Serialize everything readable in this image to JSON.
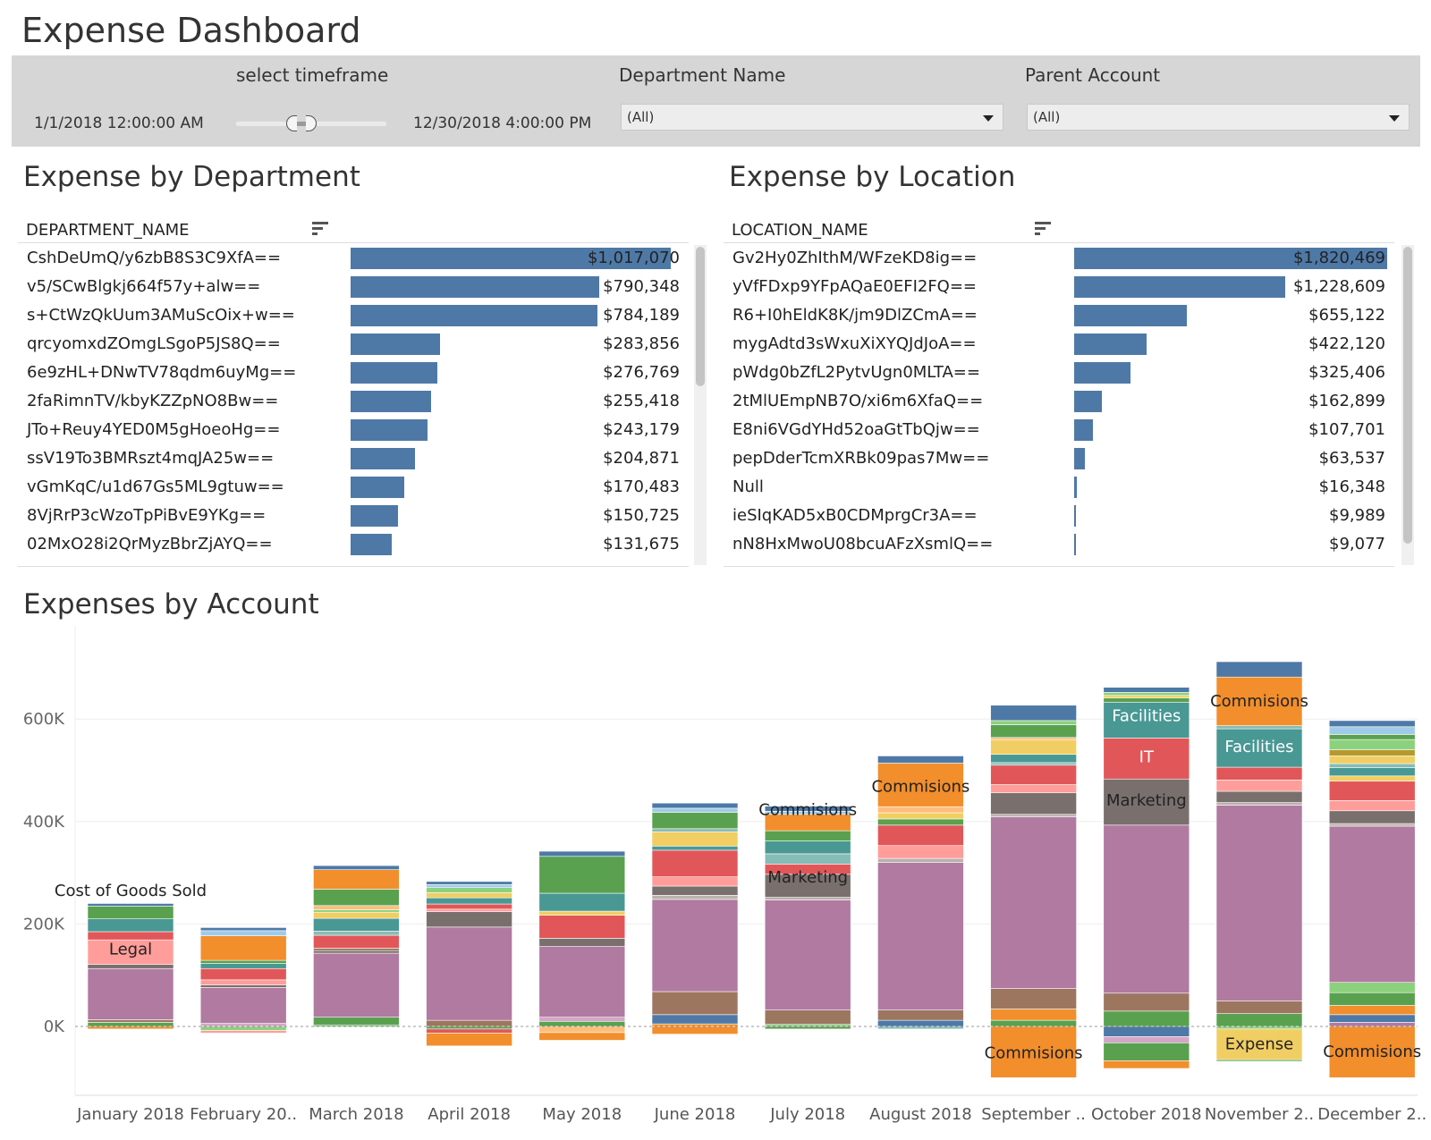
{
  "dashboard": {
    "title": "Expense Dashboard"
  },
  "filters": {
    "timeframe": {
      "label": "select timeframe",
      "start": "1/1/2018 12:00:00 AM",
      "end": "12/30/2018 4:00:00 PM"
    },
    "department": {
      "label": "Department Name",
      "value": "(All)"
    },
    "parent_account": {
      "label": "Parent Account",
      "value": "(All)"
    }
  },
  "colors": {
    "bar": "#4e79a7"
  },
  "by_department": {
    "title": "Expense by Department",
    "column": "DEPARTMENT_NAME",
    "rows": [
      {
        "name": "CshDeUmQ/y6zbB8S3C9XfA==",
        "label": "$1,017,070",
        "value": 1017070
      },
      {
        "name": "v5/SCwBlgkj664f57y+alw==",
        "label": "$790,348",
        "value": 790348
      },
      {
        "name": "s+CtWzQkUum3AMuScOix+w==",
        "label": "$784,189",
        "value": 784189
      },
      {
        "name": "qrcyomxdZOmgLSgoP5JS8Q==",
        "label": "$283,856",
        "value": 283856
      },
      {
        "name": "6e9zHL+DNwTV78qdm6uyMg==",
        "label": "$276,769",
        "value": 276769
      },
      {
        "name": "2faRimnTV/kbyKZZpNO8Bw==",
        "label": "$255,418",
        "value": 255418
      },
      {
        "name": "JTo+Reuy4YED0M5gHoeoHg==",
        "label": "$243,179",
        "value": 243179
      },
      {
        "name": "ssV19To3BMRszt4mqJA25w==",
        "label": "$204,871",
        "value": 204871
      },
      {
        "name": "vGmKqC/u1d67Gs5ML9gtuw==",
        "label": "$170,483",
        "value": 170483
      },
      {
        "name": "8VjRrP3cWzoTpPiBvE9YKg==",
        "label": "$150,725",
        "value": 150725
      },
      {
        "name": "02MxO28i2QrMyzBbrZjAYQ==",
        "label": "$131,675",
        "value": 131675
      }
    ],
    "max": 1017070
  },
  "by_location": {
    "title": "Expense by Location",
    "column": "LOCATION_NAME",
    "rows": [
      {
        "name": "Gv2Hy0ZhIthM/WFzeKD8ig==",
        "label": "$1,820,469",
        "value": 1820469
      },
      {
        "name": "yVfFDxp9YFpAQaE0EFI2FQ==",
        "label": "$1,228,609",
        "value": 1228609
      },
      {
        "name": "R6+I0hEldK8K/jm9DlZCmA==",
        "label": "$655,122",
        "value": 655122
      },
      {
        "name": "mygAdtd3sWxuXiXYQJdJoA==",
        "label": "$422,120",
        "value": 422120
      },
      {
        "name": "pWdg0bZfL2PytvUgn0MLTA==",
        "label": "$325,406",
        "value": 325406
      },
      {
        "name": "2tMlUEmpNB7O/xi6m6XfaQ==",
        "label": "$162,899",
        "value": 162899
      },
      {
        "name": "E8ni6VGdYHd52oaGtTbQjw==",
        "label": "$107,701",
        "value": 107701
      },
      {
        "name": "pepDderTcmXRBk09pas7Mw==",
        "label": "$63,537",
        "value": 63537
      },
      {
        "name": "Null",
        "label": "$16,348",
        "value": 16348
      },
      {
        "name": "ieSIqKAD5xB0CDMprgCr3A==",
        "label": "$9,989",
        "value": 9989
      },
      {
        "name": "nN8HxMwoU08bcuAFzXsmlQ==",
        "label": "$9,077",
        "value": 9077
      }
    ],
    "max": 1820469
  },
  "by_account": {
    "title": "Expenses by Account"
  },
  "chart_data": {
    "type": "bar",
    "stacked": true,
    "categories": [
      "January 2018",
      "February 20..",
      "March 2018",
      "April 2018",
      "May 2018",
      "June 2018",
      "July 2018",
      "August 2018",
      "September ..",
      "October 2018",
      "November 2..",
      "December 2.."
    ],
    "y_ticks": [
      "600K",
      "400K",
      "200K",
      "0K"
    ],
    "y_tick_values": [
      600000,
      400000,
      200000,
      0
    ],
    "ylim": [
      -110000,
      740000
    ],
    "grid": true,
    "palette": [
      "#4e79a7",
      "#a0cbe8",
      "#f28e2b",
      "#ffbe7d",
      "#59a14f",
      "#8cd17d",
      "#b6992d",
      "#f1ce63",
      "#499894",
      "#86bcb6",
      "#e15759",
      "#ff9d9a",
      "#79706e",
      "#bab0ac",
      "#d37295",
      "#fabfd2",
      "#b07aa1",
      "#d4a6c8",
      "#9d7660",
      "#d7b5a6"
    ],
    "stacks": [
      {
        "pos": [
          [
            8,
            "#59a14f"
          ],
          [
            5,
            "#9d7660"
          ],
          [
            100,
            "#b07aa1"
          ],
          [
            8,
            "#79706e"
          ],
          [
            48,
            "#ff9d9a"
          ],
          [
            16,
            "#e15759"
          ],
          [
            25,
            "#499894"
          ],
          [
            25,
            "#59a14f"
          ],
          [
            5,
            "#4e79a7"
          ]
        ],
        "neg": [
          [
            5,
            "#f28e2b"
          ]
        ]
      },
      {
        "pos": [
          [
            6,
            "#d4a6c8"
          ],
          [
            70,
            "#b07aa1"
          ],
          [
            5,
            "#79706e"
          ],
          [
            10,
            "#ff9d9a"
          ],
          [
            22,
            "#e15759"
          ],
          [
            10,
            "#499894"
          ],
          [
            6,
            "#59a14f"
          ],
          [
            48,
            "#f28e2b"
          ],
          [
            10,
            "#a0cbe8"
          ],
          [
            6,
            "#4e79a7"
          ]
        ],
        "neg": [
          [
            8,
            "#8cd17d"
          ],
          [
            5,
            "#ff9d9a"
          ]
        ]
      },
      {
        "pos": [
          [
            3,
            "#59a14f"
          ],
          [
            15,
            "#59a14f"
          ],
          [
            125,
            "#b07aa1"
          ],
          [
            5,
            "#79706e"
          ],
          [
            5,
            "#9d7660"
          ],
          [
            25,
            "#e15759"
          ],
          [
            8,
            "#86bcb6"
          ],
          [
            25,
            "#499894"
          ],
          [
            12,
            "#f1ce63"
          ],
          [
            5,
            "#8cd17d"
          ],
          [
            8,
            "#ffbe7d"
          ],
          [
            32,
            "#59a14f"
          ],
          [
            38,
            "#f28e2b"
          ],
          [
            8,
            "#4e79a7"
          ]
        ],
        "neg": []
      },
      {
        "pos": [
          [
            12,
            "#9d7660"
          ],
          [
            182,
            "#b07aa1"
          ],
          [
            30,
            "#79706e"
          ],
          [
            5,
            "#ff9d9a"
          ],
          [
            10,
            "#e15759"
          ],
          [
            12,
            "#499894"
          ],
          [
            10,
            "#f1ce63"
          ],
          [
            10,
            "#8cd17d"
          ],
          [
            6,
            "#a0cbe8"
          ],
          [
            6,
            "#4e79a7"
          ]
        ],
        "neg": [
          [
            5,
            "#59a14f"
          ],
          [
            8,
            "#e15759"
          ],
          [
            25,
            "#f28e2b"
          ]
        ]
      },
      {
        "pos": [
          [
            10,
            "#59a14f"
          ],
          [
            8,
            "#d4a6c8"
          ],
          [
            138,
            "#b07aa1"
          ],
          [
            16,
            "#79706e"
          ],
          [
            45,
            "#e15759"
          ],
          [
            8,
            "#f1ce63"
          ],
          [
            35,
            "#499894"
          ],
          [
            72,
            "#59a14f"
          ],
          [
            10,
            "#4e79a7"
          ]
        ],
        "neg": [
          [
            12,
            "#ffbe7d"
          ],
          [
            15,
            "#f28e2b"
          ]
        ]
      },
      {
        "pos": [
          [
            5,
            "#f28e2b"
          ],
          [
            18,
            "#4e79a7"
          ],
          [
            45,
            "#9d7660"
          ],
          [
            180,
            "#b07aa1"
          ],
          [
            8,
            "#bab0ac"
          ],
          [
            18,
            "#79706e"
          ],
          [
            18,
            "#ff9d9a"
          ],
          [
            52,
            "#e15759"
          ],
          [
            8,
            "#499894"
          ],
          [
            28,
            "#f1ce63"
          ],
          [
            6,
            "#86bcb6"
          ],
          [
            32,
            "#59a14f"
          ],
          [
            8,
            "#a0cbe8"
          ],
          [
            10,
            "#4e79a7"
          ]
        ],
        "neg": [
          [
            15,
            "#f28e2b"
          ]
        ]
      },
      {
        "pos": [
          [
            4,
            "#8cd17d"
          ],
          [
            28,
            "#9d7660"
          ],
          [
            215,
            "#b07aa1"
          ],
          [
            5,
            "#bab0ac"
          ],
          [
            45,
            "#79706e"
          ],
          [
            20,
            "#e15759"
          ],
          [
            20,
            "#86bcb6"
          ],
          [
            25,
            "#499894"
          ],
          [
            20,
            "#59a14f"
          ],
          [
            32,
            "#f28e2b"
          ],
          [
            6,
            "#a0cbe8"
          ],
          [
            10,
            "#4e79a7"
          ]
        ],
        "neg": [
          [
            5,
            "#59a14f"
          ]
        ]
      },
      {
        "pos": [
          [
            12,
            "#4e79a7"
          ],
          [
            20,
            "#9d7660"
          ],
          [
            288,
            "#b07aa1"
          ],
          [
            8,
            "#bab0ac"
          ],
          [
            25,
            "#ff9d9a"
          ],
          [
            40,
            "#e15759"
          ],
          [
            12,
            "#59a14f"
          ],
          [
            12,
            "#f1ce63"
          ],
          [
            12,
            "#ffbe7d"
          ],
          [
            85,
            "#f28e2b"
          ],
          [
            14,
            "#4e79a7"
          ]
        ],
        "neg": [
          [
            5,
            "#86bcb6"
          ]
        ]
      },
      {
        "pos": [
          [
            12,
            "#59a14f"
          ],
          [
            22,
            "#f28e2b"
          ],
          [
            40,
            "#9d7660"
          ],
          [
            335,
            "#b07aa1"
          ],
          [
            5,
            "#bab0ac"
          ],
          [
            42,
            "#79706e"
          ],
          [
            16,
            "#ff9d9a"
          ],
          [
            38,
            "#e15759"
          ],
          [
            5,
            "#86bcb6"
          ],
          [
            16,
            "#499894"
          ],
          [
            28,
            "#f1ce63"
          ],
          [
            5,
            "#ffbe7d"
          ],
          [
            25,
            "#59a14f"
          ],
          [
            8,
            "#8cd17d"
          ],
          [
            30,
            "#4e79a7"
          ]
        ],
        "neg": [
          [
            100,
            "#f28e2b"
          ]
        ]
      },
      {
        "pos": [
          [
            30,
            "#59a14f"
          ],
          [
            35,
            "#9d7660"
          ],
          [
            328,
            "#b07aa1"
          ],
          [
            90,
            "#79706e"
          ],
          [
            80,
            "#e15759"
          ],
          [
            70,
            "#499894"
          ],
          [
            8,
            "#59a14f"
          ],
          [
            5,
            "#f1ce63"
          ],
          [
            6,
            "#8cd17d"
          ],
          [
            10,
            "#4e79a7"
          ]
        ],
        "neg": [
          [
            20,
            "#4e79a7"
          ],
          [
            12,
            "#d4a6c8"
          ],
          [
            35,
            "#59a14f"
          ],
          [
            15,
            "#f28e2b"
          ]
        ]
      },
      {
        "pos": [
          [
            25,
            "#59a14f"
          ],
          [
            25,
            "#9d7660"
          ],
          [
            382,
            "#b07aa1"
          ],
          [
            5,
            "#bab0ac"
          ],
          [
            22,
            "#79706e"
          ],
          [
            22,
            "#ff9d9a"
          ],
          [
            25,
            "#e15759"
          ],
          [
            75,
            "#499894"
          ],
          [
            6,
            "#86bcb6"
          ],
          [
            95,
            "#f28e2b"
          ],
          [
            30,
            "#4e79a7"
          ]
        ],
        "neg": [
          [
            5,
            "#8cd17d"
          ],
          [
            60,
            "#f1ce63"
          ],
          [
            3,
            "#59a14f"
          ]
        ]
      },
      {
        "pos": [
          [
            8,
            "#b07aa1"
          ],
          [
            15,
            "#4e79a7"
          ],
          [
            18,
            "#f28e2b"
          ],
          [
            25,
            "#59a14f"
          ],
          [
            20,
            "#8cd17d"
          ],
          [
            305,
            "#b07aa1"
          ],
          [
            5,
            "#bab0ac"
          ],
          [
            25,
            "#79706e"
          ],
          [
            20,
            "#ff9d9a"
          ],
          [
            38,
            "#e15759"
          ],
          [
            10,
            "#f1ce63"
          ],
          [
            16,
            "#499894"
          ],
          [
            8,
            "#86bcb6"
          ],
          [
            15,
            "#f1ce63"
          ],
          [
            12,
            "#b6992d"
          ],
          [
            20,
            "#8cd17d"
          ],
          [
            10,
            "#59a14f"
          ],
          [
            15,
            "#a0cbe8"
          ],
          [
            12,
            "#4e79a7"
          ]
        ],
        "neg": [
          [
            100,
            "#f28e2b"
          ]
        ]
      }
    ],
    "annotations": [
      {
        "text": "Cost of Goods Sold",
        "bar": 0,
        "y": 267,
        "color": "#222222"
      },
      {
        "text": "Legal",
        "bar": 0,
        "y": 153,
        "color": "#222222"
      },
      {
        "text": "Commisions",
        "bar": 6,
        "y": 425,
        "color": "#222222"
      },
      {
        "text": "Marketing",
        "bar": 6,
        "y": 293,
        "color": "#222222"
      },
      {
        "text": "Commisions",
        "bar": 7,
        "y": 470,
        "color": "#222222"
      },
      {
        "text": "Commisions",
        "bar": 8,
        "y": -50,
        "color": "#222222"
      },
      {
        "text": "Facilities",
        "bar": 9,
        "y": 608,
        "color": "#ffffff"
      },
      {
        "text": "IT",
        "bar": 9,
        "y": 528,
        "color": "#ffffff"
      },
      {
        "text": "Marketing",
        "bar": 9,
        "y": 443,
        "color": "#222222"
      },
      {
        "text": "Commisions",
        "bar": 10,
        "y": 637,
        "color": "#222222"
      },
      {
        "text": "Facilities",
        "bar": 10,
        "y": 548,
        "color": "#ffffff"
      },
      {
        "text": "Expense",
        "bar": 10,
        "y": -32,
        "color": "#222222"
      },
      {
        "text": "Commisions",
        "bar": 11,
        "y": -47,
        "color": "#222222"
      }
    ]
  }
}
